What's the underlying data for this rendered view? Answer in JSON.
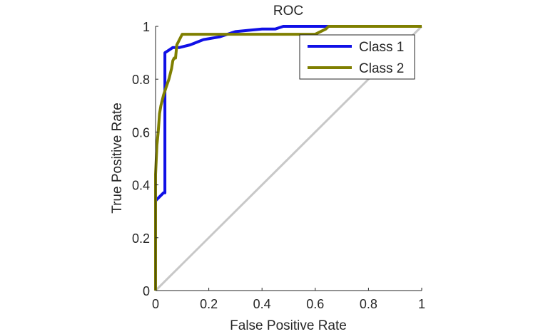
{
  "chart_data": {
    "type": "line",
    "title": "ROC",
    "xlabel": "False Positive Rate",
    "ylabel": "True Positive Rate",
    "xlim": [
      0,
      1
    ],
    "ylim": [
      0,
      1
    ],
    "xticks": [
      "0",
      "0.2",
      "0.4",
      "0.6",
      "0.8",
      "1"
    ],
    "yticks": [
      "0",
      "0.2",
      "0.4",
      "0.6",
      "0.8",
      "1"
    ],
    "grid": false,
    "legend_position": "top-right",
    "diagonal_color": "#c8c8c8",
    "series": [
      {
        "name": "Class 1",
        "color": "#1010e6",
        "points": [
          [
            0,
            0.34
          ],
          [
            0.03,
            0.37
          ],
          [
            0.035,
            0.37
          ],
          [
            0.035,
            0.9
          ],
          [
            0.05,
            0.91
          ],
          [
            0.065,
            0.92
          ],
          [
            0.09,
            0.92
          ],
          [
            0.13,
            0.93
          ],
          [
            0.18,
            0.95
          ],
          [
            0.24,
            0.96
          ],
          [
            0.3,
            0.98
          ],
          [
            0.4,
            0.99
          ],
          [
            0.45,
            0.99
          ],
          [
            0.48,
            1.0
          ],
          [
            0.6,
            1.0
          ],
          [
            0.68,
            1.0
          ],
          [
            1.0,
            1.0
          ]
        ]
      },
      {
        "name": "Class 2",
        "color": "#7f7f00",
        "points": [
          [
            0,
            0
          ],
          [
            0,
            0.44
          ],
          [
            0.005,
            0.55
          ],
          [
            0.01,
            0.6
          ],
          [
            0.015,
            0.67
          ],
          [
            0.02,
            0.7
          ],
          [
            0.03,
            0.74
          ],
          [
            0.04,
            0.77
          ],
          [
            0.05,
            0.8
          ],
          [
            0.06,
            0.84
          ],
          [
            0.065,
            0.87
          ],
          [
            0.07,
            0.88
          ],
          [
            0.075,
            0.88
          ],
          [
            0.08,
            0.93
          ],
          [
            0.1,
            0.97
          ],
          [
            0.2,
            0.97
          ],
          [
            0.5,
            0.97
          ],
          [
            0.6,
            0.97
          ],
          [
            0.64,
            0.99
          ],
          [
            0.65,
            1.0
          ],
          [
            1.0,
            1.0
          ]
        ]
      }
    ]
  }
}
